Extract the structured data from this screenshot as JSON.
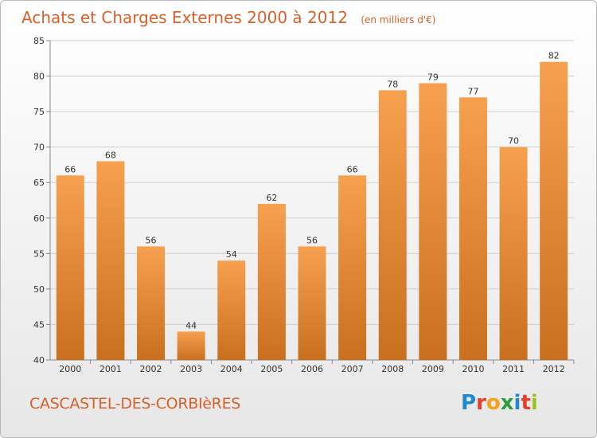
{
  "header": {
    "title": "Achats et Charges Externes 2000 à 2012",
    "unit": "(en milliers d'€)"
  },
  "footer": {
    "commune": "CASCASTEL-DES-CORBIèRES",
    "brand": "Proxiti",
    "brand_colors": [
      "#1e88d0",
      "#e63e2a",
      "#f2a417",
      "#2d9b3f",
      "#1e88d0",
      "#e63e2a",
      "#9bc31f"
    ]
  },
  "chart_data": {
    "type": "bar",
    "title": "Achats et Charges Externes 2000 à 2012",
    "subtitle": "(en milliers d'€)",
    "xlabel": "",
    "ylabel": "",
    "categories": [
      "2000",
      "2001",
      "2002",
      "2003",
      "2004",
      "2005",
      "2006",
      "2007",
      "2008",
      "2009",
      "2010",
      "2011",
      "2012"
    ],
    "values": [
      66,
      68,
      56,
      44,
      54,
      62,
      56,
      66,
      78,
      79,
      77,
      70,
      82
    ],
    "ylim": [
      40,
      85
    ],
    "yticks": [
      40,
      45,
      50,
      55,
      60,
      65,
      70,
      75,
      80,
      85
    ],
    "grid": true,
    "bar_color_top": "#f7a04f",
    "bar_color_bottom": "#c9701f"
  }
}
